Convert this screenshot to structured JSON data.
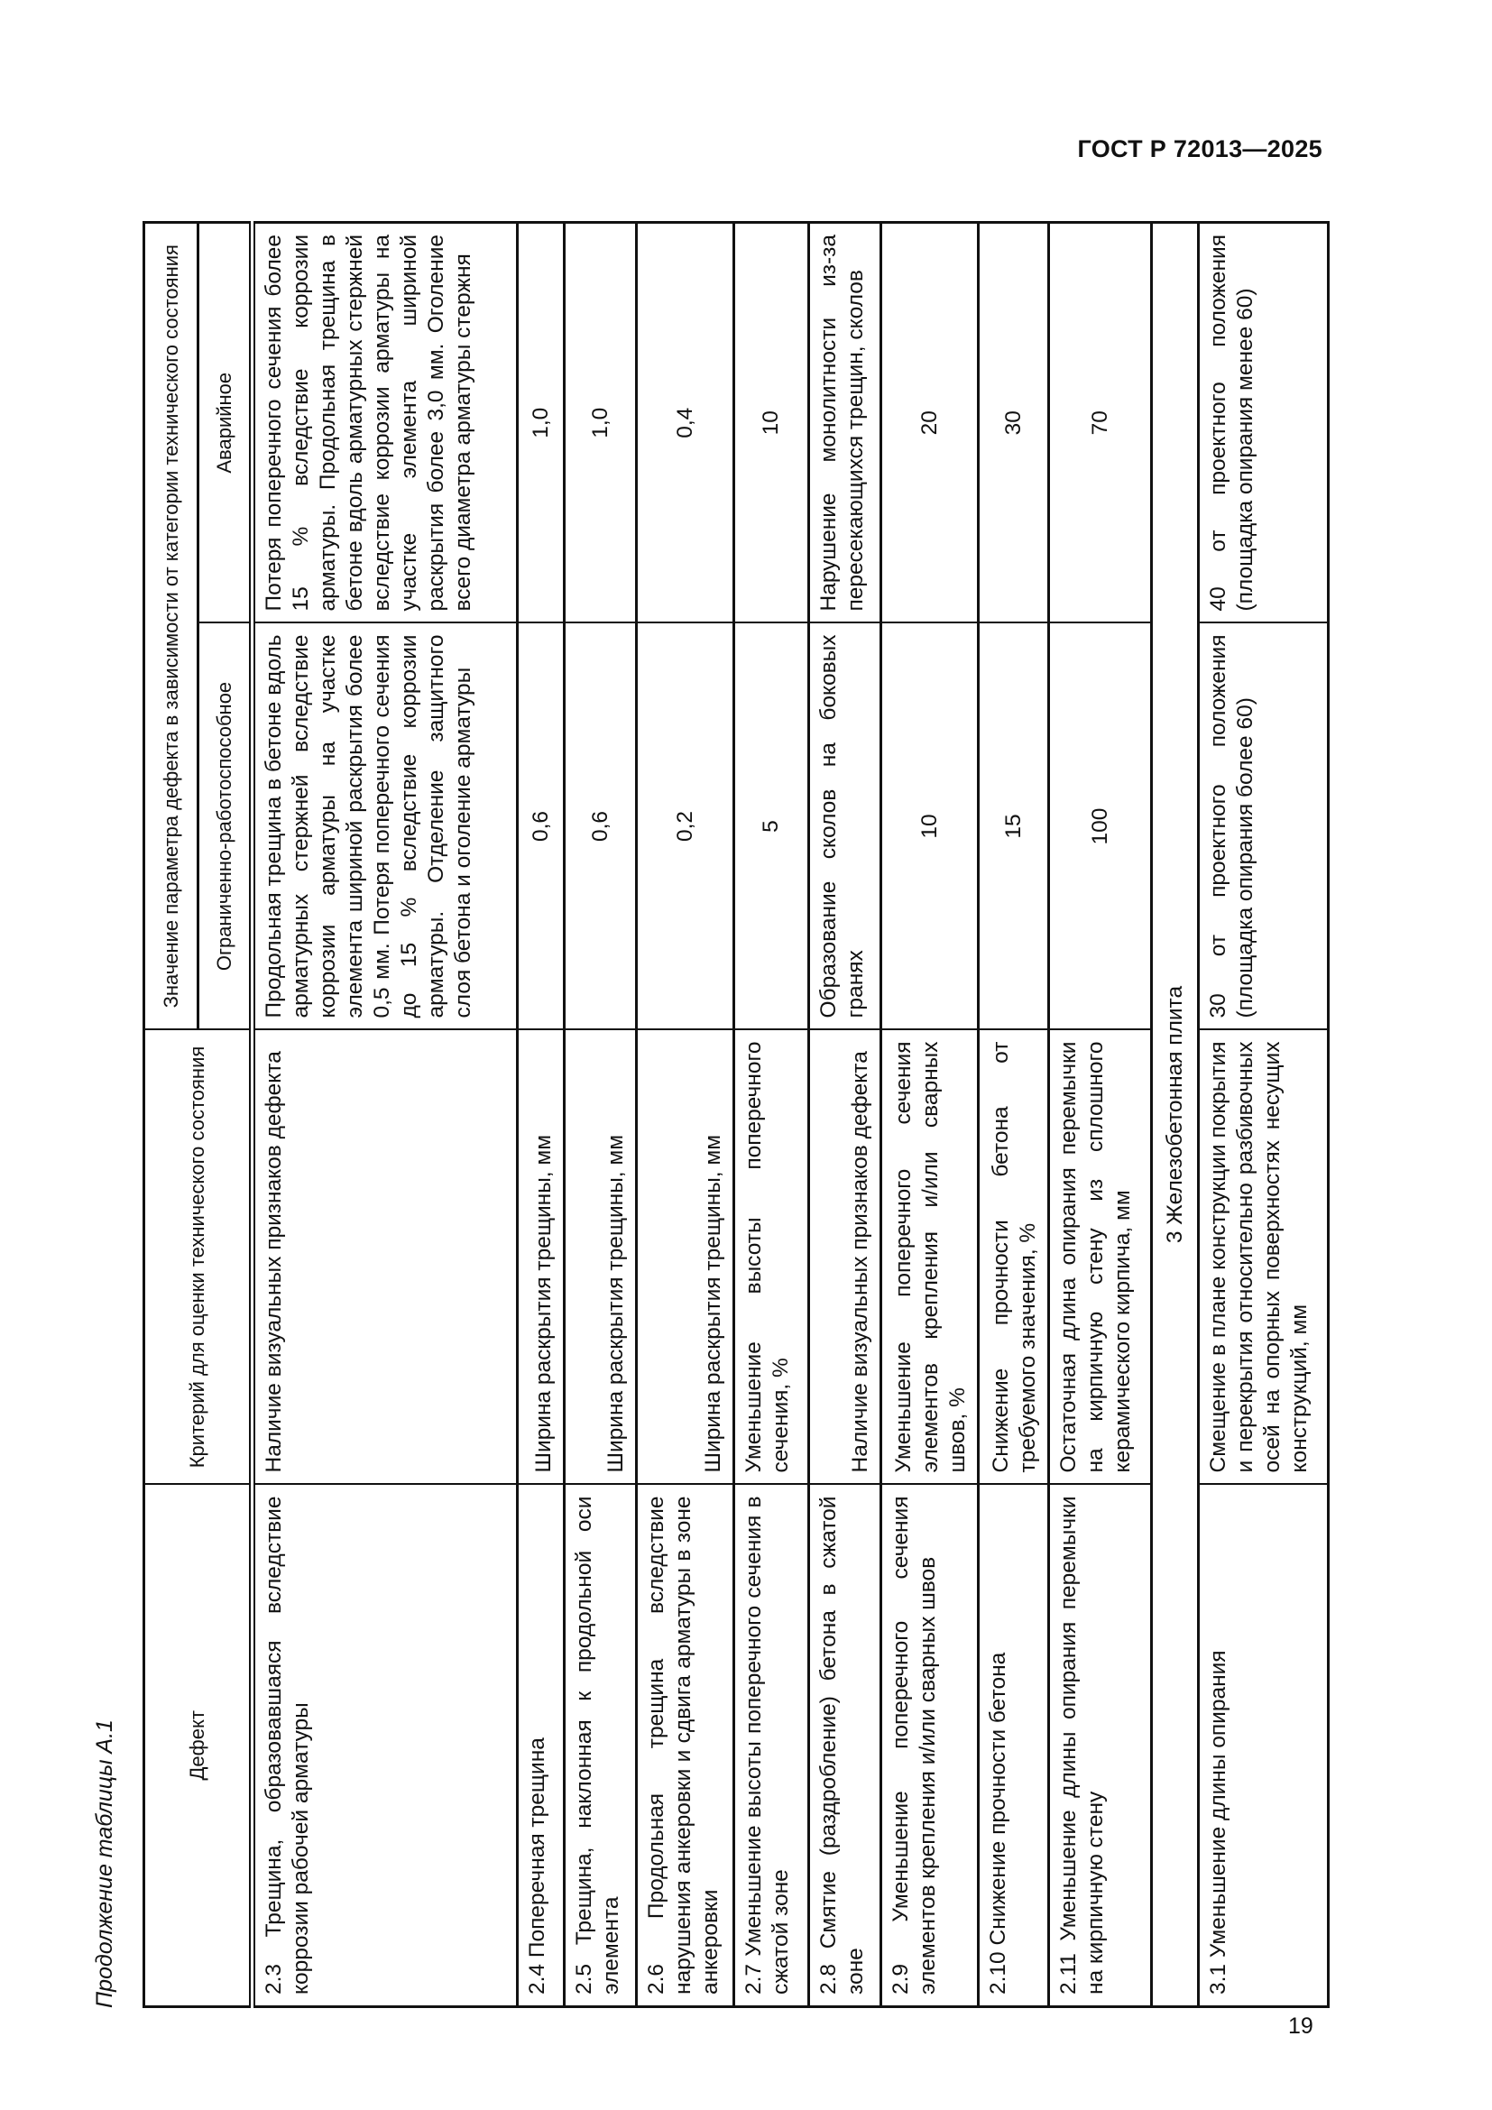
{
  "header": {
    "doc_code": "ГОСТ Р 72013—2025",
    "page_number": "19",
    "continuation": "Продолжение таблицы А.1"
  },
  "table": {
    "headers": {
      "defect": "Дефект",
      "criterion": "Критерий для оценки технического состояния",
      "value_group": "Значение параметра дефекта в зависимости от категории технического состояния",
      "limited": "Ограниченно-работоспособное",
      "emergency": "Аварийное"
    },
    "rows": [
      {
        "defect": "2.3 Трещина, образовавшаяся вследствие коррозии рабочей арматуры",
        "criterion": "Наличие визуальных признаков дефекта",
        "limited": "Продольная трещина в бетоне вдоль арматурных стержней вследствие коррозии арматуры на участке элемента шириной раскрытия более 0,5 мм. Потеря поперечного сечения до 15 % вследствие коррозии арматуры. Отделение защитного слоя бетона и оголение арматуры",
        "emergency": "Потеря поперечного сечения более 15 % вследствие коррозии арматуры. Продольная трещина в бетоне вдоль арматурных стержней вследствие коррозии арматуры на участке элемента шириной раскрытия более 3,0 мм. Оголение всего диаметра арматуры стержня"
      },
      {
        "defect": "2.4 Поперечная трещина",
        "criterion": "Ширина раскрытия трещины, мм",
        "limited": "0,6",
        "emergency": "1,0"
      },
      {
        "defect": "2.5 Трещина, наклонная к продольной оси элемента",
        "criterion": "Ширина раскрытия трещины, мм",
        "limited": "0,6",
        "emergency": "1,0"
      },
      {
        "defect": "2.6 Продольная трещина вследствие нарушения анкеровки и сдвига арматуры в зоне анкеровки",
        "criterion": "Ширина раскрытия трещины, мм",
        "limited": "0,2",
        "emergency": "0,4"
      },
      {
        "defect": "2.7 Уменьшение высоты поперечного сечения в сжатой зоне",
        "criterion": "Уменьшение высоты поперечного сечения, %",
        "limited": "5",
        "emergency": "10"
      },
      {
        "defect": "2.8 Смятие (раздробление) бетона в сжатой зоне",
        "criterion": "Наличие визуальных признаков дефекта",
        "limited": "Образование сколов на боковых гранях",
        "emergency": "Нарушение монолитности из-за пересекающихся трещин, сколов"
      },
      {
        "defect": "2.9 Уменьшение поперечного сечения элементов крепления и/или сварных швов",
        "criterion": "Уменьшение поперечного сечения элементов крепления и/или сварных швов, %",
        "limited": "10",
        "emergency": "20"
      },
      {
        "defect": "2.10 Снижение прочности бетона",
        "criterion": "Снижение прочности бетона от требуемого значения, %",
        "limited": "15",
        "emergency": "30"
      },
      {
        "defect": "2.11 Уменьшение длины опирания перемычки на кирпичную стену",
        "criterion": "Остаточная длина опирания перемычки на кирпичную стену из сплошного керамического кирпича, мм",
        "limited": "100",
        "emergency": "70"
      },
      {
        "section": "3 Железобетонная плита"
      },
      {
        "defect": "3.1 Уменьшение длины опирания",
        "criterion": "Смещение в плане конструкции покрытия и перекрытия относительно разбивочных осей на опорных поверхностях несущих конструкций, мм",
        "limited": "30 от проектного положения (площадка опирания более 60)",
        "emergency": "40 от проектного положения (площадка опирания менее 60)"
      }
    ]
  }
}
